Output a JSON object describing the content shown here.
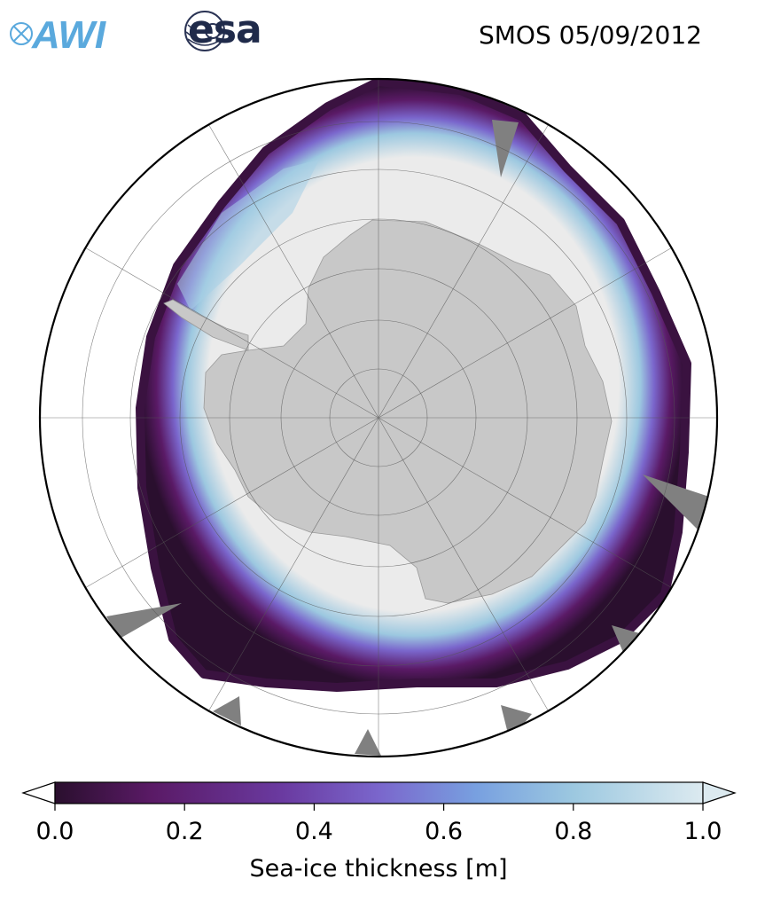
{
  "header": {
    "awi_logo_text": "AWI",
    "esa_logo_text": "esa",
    "title": "SMOS 05/09/2012"
  },
  "map": {
    "projection": "south-polar-stereographic",
    "center": "South Pole",
    "land_color": "#c8c8c8",
    "open_water_color": "#ffffff",
    "thick_ice_color": "#ebebeb",
    "no_data_color": "#808080",
    "graticule": "on",
    "latitude_circles": "5 rings",
    "meridians": "12 lines"
  },
  "colorbar": {
    "label": "Sea-ice thickness [m]",
    "ticks": [
      "0.0",
      "0.2",
      "0.4",
      "0.6",
      "0.8",
      "1.0"
    ],
    "range": [
      0.0,
      1.0
    ],
    "extend": "both",
    "stops": [
      {
        "value": 0.0,
        "color": "#2a0f2e"
      },
      {
        "value": 0.15,
        "color": "#5a1a66"
      },
      {
        "value": 0.35,
        "color": "#6a3aa0"
      },
      {
        "value": 0.5,
        "color": "#7a66cc"
      },
      {
        "value": 0.65,
        "color": "#78a0e0"
      },
      {
        "value": 0.8,
        "color": "#9cc8e0"
      },
      {
        "value": 1.0,
        "color": "#dceaf0"
      }
    ]
  }
}
